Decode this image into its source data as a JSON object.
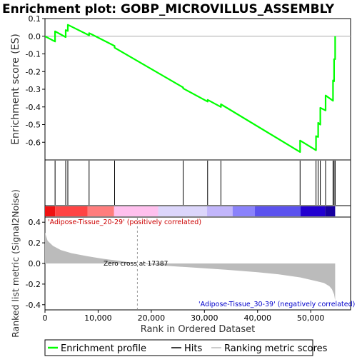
{
  "chart_data": {
    "type": "line",
    "title": "Enrichment plot: GOBP_MICROVILLUS_ASSEMBLY",
    "es_panel": {
      "ylabel": "Enrichment score (ES)",
      "ylim": [
        -0.7,
        0.1
      ],
      "yticks": [
        0.1,
        0.0,
        -0.1,
        -0.2,
        -0.3,
        -0.4,
        -0.5,
        -0.6
      ],
      "ytick_labels": [
        "0.1",
        "0.0",
        "-0.1",
        "-0.2",
        "-0.3",
        "-0.4",
        "-0.5",
        "-0.6"
      ],
      "series": [
        {
          "name": "Enrichment profile",
          "color": "#00ff00",
          "x": [
            0,
            1900,
            1900,
            3900,
            3900,
            4300,
            4300,
            8300,
            8300,
            13100,
            13100,
            26000,
            26000,
            30600,
            30600,
            33100,
            33100,
            48000,
            48000,
            51000,
            51000,
            51400,
            51400,
            51800,
            51800,
            52800,
            52800,
            54200,
            54200,
            54400,
            54400,
            54600,
            54600
          ],
          "y": [
            0.0,
            -0.03,
            0.028,
            -0.005,
            0.035,
            0.03,
            0.065,
            0.005,
            0.018,
            -0.055,
            -0.065,
            -0.29,
            -0.295,
            -0.37,
            -0.36,
            -0.4,
            -0.385,
            -0.655,
            -0.59,
            -0.645,
            -0.565,
            -0.57,
            -0.49,
            -0.5,
            -0.405,
            -0.42,
            -0.335,
            -0.365,
            -0.25,
            -0.255,
            -0.13,
            -0.13,
            0.0
          ]
        }
      ]
    },
    "hits": {
      "name": "Hits",
      "x": [
        1900,
        3900,
        4300,
        8300,
        13100,
        26000,
        30600,
        33100,
        48000,
        51000,
        51400,
        51800,
        52800,
        54200,
        54400,
        54600
      ]
    },
    "rank_panel": {
      "ylabel": "Ranked list metric (Signal2Noise)",
      "ylim": [
        -0.45,
        0.45
      ],
      "yticks": [
        0.4,
        0.2,
        0.0,
        -0.2,
        -0.4
      ],
      "ytick_labels": [
        "0.4",
        "0.2",
        "0.0",
        "-0.2",
        "-0.4"
      ],
      "series_name": "Ranking metric scores",
      "fill_color": "#bbbbbb",
      "profile_x": [
        0,
        500,
        1500,
        3000,
        5000,
        8000,
        11000,
        14000,
        17387,
        22000,
        28000,
        34000,
        40000,
        44000,
        48000,
        51000,
        52500,
        53500,
        54000,
        54400,
        54600
      ],
      "profile_y": [
        0.3,
        0.22,
        0.17,
        0.13,
        0.1,
        0.07,
        0.045,
        0.025,
        0.0,
        -0.02,
        -0.04,
        -0.06,
        -0.085,
        -0.105,
        -0.135,
        -0.17,
        -0.19,
        -0.22,
        -0.25,
        -0.3,
        -0.36
      ],
      "zero_cross_label": "Zero cross at 17387",
      "zero_cross_x": 17387,
      "positive_label": "'Adipose-Tissue_20-29' (positively correlated)",
      "negative_label": "'Adipose-Tissue_30-39' (negatively correlated)"
    },
    "heatmap_bar": {
      "segments": [
        {
          "x0": 0,
          "x1": 1900,
          "color": "#ee1111"
        },
        {
          "x0": 1900,
          "x1": 8000,
          "color": "#ff4444"
        },
        {
          "x0": 8000,
          "x1": 13000,
          "color": "#ff7d7d"
        },
        {
          "x0": 13000,
          "x1": 21300,
          "color": "#ffc0ee"
        },
        {
          "x0": 21300,
          "x1": 30500,
          "color": "#dcd6fb"
        },
        {
          "x0": 30500,
          "x1": 35300,
          "color": "#c2b6fb"
        },
        {
          "x0": 35300,
          "x1": 39500,
          "color": "#8a82fb"
        },
        {
          "x0": 39500,
          "x1": 48100,
          "color": "#5b52ee"
        },
        {
          "x0": 48100,
          "x1": 52700,
          "color": "#2200d0"
        },
        {
          "x0": 52700,
          "x1": 54600,
          "color": "#1800a0"
        }
      ]
    },
    "xaxis": {
      "xlabel": "Rank in Ordered Dataset",
      "xlim": [
        0,
        57500
      ],
      "xticks": [
        0,
        10000,
        20000,
        30000,
        40000,
        50000
      ],
      "xtick_labels": [
        "0",
        "10,000",
        "20,000",
        "30,000",
        "40,000",
        "50,000"
      ]
    },
    "legend": {
      "placement": "bottom",
      "entries": [
        {
          "label": "Enrichment profile",
          "color": "#00ff00"
        },
        {
          "label": "Hits",
          "color": "#000000"
        },
        {
          "label": "Ranking metric scores",
          "color": "#bbbbbb"
        }
      ]
    }
  }
}
